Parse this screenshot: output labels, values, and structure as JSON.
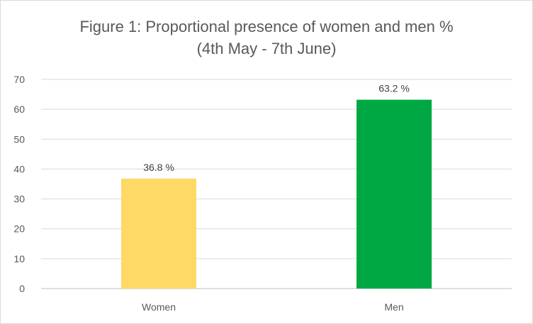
{
  "chart_data": {
    "type": "bar",
    "title": "Figure 1: Proportional presence of women and men %",
    "subtitle": "(4th May - 7th June)",
    "categories": [
      "Women",
      "Men"
    ],
    "values": [
      36.8,
      63.2
    ],
    "data_labels": [
      "36.8 %",
      "63.2 %"
    ],
    "colors": [
      "#FFD966",
      "#00A844"
    ],
    "xlabel": "",
    "ylabel": "",
    "ylim": [
      0,
      70
    ],
    "yticks": [
      0,
      10,
      20,
      30,
      40,
      50,
      60,
      70
    ],
    "grid": true,
    "legend": "none"
  }
}
